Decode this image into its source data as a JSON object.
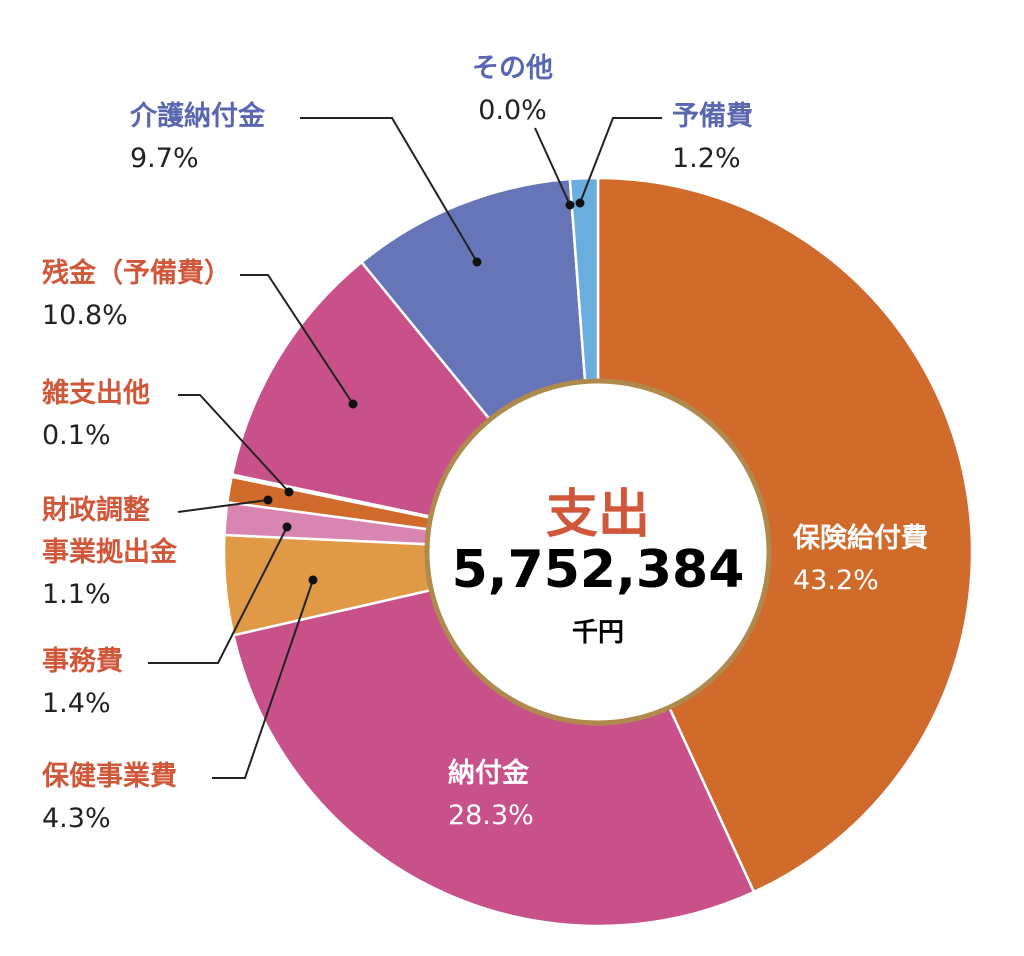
{
  "chart_data": {
    "type": "pie",
    "variant": "donut",
    "title": "支出",
    "total": "5,752,384",
    "unit": "千円",
    "slices": [
      {
        "label": "保険給付費",
        "value": 43.2,
        "value_label": "43.2%",
        "color": "#d06b2c"
      },
      {
        "label": "納付金",
        "value": 28.3,
        "value_label": "28.3%",
        "color": "#c9518a"
      },
      {
        "label": "保健事業費",
        "value": 4.3,
        "value_label": "4.3%",
        "color": "#e09a45"
      },
      {
        "label": "事務費",
        "value": 1.4,
        "value_label": "1.4%",
        "color": "#d985b2"
      },
      {
        "label": "財政調整事業拠出金",
        "label_lines": [
          "財政調整",
          "事業拠出金"
        ],
        "value": 1.1,
        "value_label": "1.1%",
        "color": "#d06b2c"
      },
      {
        "label": "雑支出他",
        "value": 0.1,
        "value_label": "0.1%",
        "color": "#c9518a"
      },
      {
        "label": "残金（予備費）",
        "value": 10.8,
        "value_label": "10.8%",
        "color": "#c9518a"
      },
      {
        "label": "介護納付金",
        "value": 9.7,
        "value_label": "9.7%",
        "color": "#6674b8"
      },
      {
        "label": "その他",
        "value": 0.0,
        "value_label": "0.0%",
        "color": "#6674b8"
      },
      {
        "label": "予備費",
        "value": 1.2,
        "value_label": "1.2%",
        "color": "#6aaee0"
      }
    ],
    "ring_border_color": "#b08a4c"
  }
}
